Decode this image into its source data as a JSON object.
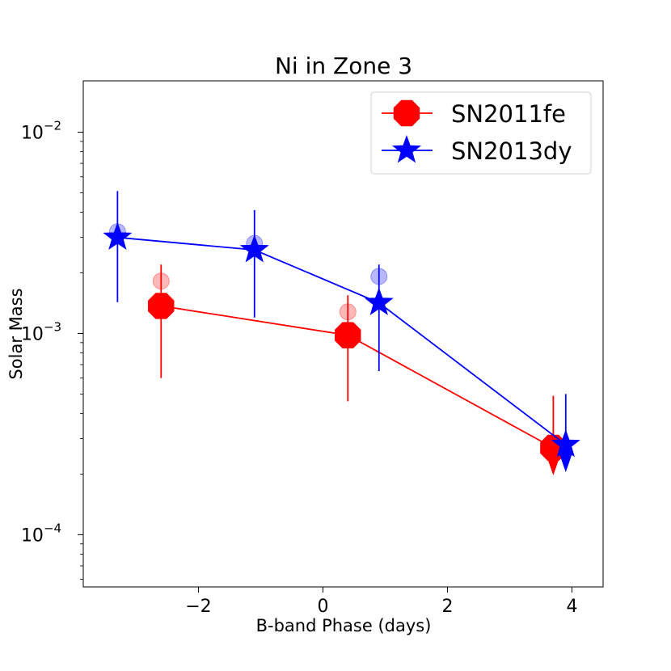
{
  "chart_data": {
    "type": "scatter",
    "title": "Ni in Zone 3",
    "xlabel": "B-band Phase (days)",
    "ylabel": "Solar Mass",
    "xlim": [
      -3.85,
      4.5
    ],
    "ylim": [
      5.5e-05,
      0.018
    ],
    "yscale": "log",
    "grid": false,
    "legend_position": "top-right",
    "x_ticks": [
      {
        "value": -2,
        "label": "−2"
      },
      {
        "value": 0,
        "label": "0"
      },
      {
        "value": 2,
        "label": "2"
      },
      {
        "value": 4,
        "label": "4"
      }
    ],
    "y_ticks": [
      {
        "value": 0.0001,
        "base": "10",
        "exp": "−4"
      },
      {
        "value": 0.001,
        "base": "10",
        "exp": "−3"
      },
      {
        "value": 0.01,
        "base": "10",
        "exp": "−2"
      }
    ],
    "series": [
      {
        "name": "SN2011fe",
        "color": "#ff0000",
        "marker": "octagon",
        "x": [
          -2.6,
          0.4,
          3.7
        ],
        "y": [
          0.00137,
          0.00098,
          0.00027
        ],
        "yerr_low": [
          0.0006,
          0.00046,
          0.000245
        ],
        "yerr_high": [
          0.0022,
          0.00155,
          0.00049
        ],
        "upper_limit": [
          false,
          false,
          true
        ],
        "faded_x": [
          -2.6,
          0.4
        ],
        "faded_y": [
          0.00182,
          0.00128
        ]
      },
      {
        "name": "SN2013dy",
        "color": "#0000ff",
        "marker": "star",
        "x": [
          -3.3,
          -1.1,
          0.9,
          3.9
        ],
        "y": [
          0.003,
          0.0026,
          0.00142,
          0.00028
        ],
        "yerr_low": [
          0.00143,
          0.0012,
          0.00065,
          0.00025
        ],
        "yerr_high": [
          0.0051,
          0.0041,
          0.0022,
          0.0005
        ],
        "upper_limit": [
          false,
          false,
          false,
          true
        ],
        "faded_x": [
          -3.3,
          -1.1,
          0.9
        ],
        "faded_y": [
          0.0032,
          0.0028,
          0.00192
        ]
      }
    ]
  }
}
